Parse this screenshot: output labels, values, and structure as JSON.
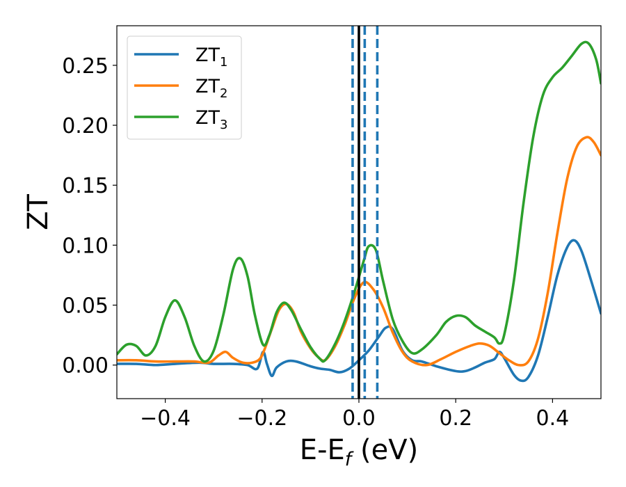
{
  "chart_data": {
    "type": "line",
    "xlabel": "E-E",
    "xlabel_sub": "f",
    "xlabel_unit": " (eV)",
    "ylabel": "ZT",
    "xlim": [
      -0.5,
      0.5
    ],
    "ylim": [
      -0.028,
      0.283
    ],
    "xticks": [
      -0.4,
      -0.2,
      0.0,
      0.2,
      0.4
    ],
    "xtick_labels": [
      "−0.4",
      "−0.2",
      "0.0",
      "0.2",
      "0.4"
    ],
    "yticks": [
      0.0,
      0.05,
      0.1,
      0.15,
      0.2,
      0.25
    ],
    "ytick_labels": [
      "0.00",
      "0.05",
      "0.10",
      "0.15",
      "0.20",
      "0.25"
    ],
    "legend_position": "top-left",
    "vertical_lines": [
      {
        "x": -0.013,
        "style": "dashed",
        "color": "#1f77b4"
      },
      {
        "x": 0.0,
        "style": "solid",
        "color": "#000000"
      },
      {
        "x": 0.012,
        "style": "dashed",
        "color": "#1f77b4"
      },
      {
        "x": 0.038,
        "style": "dashed",
        "color": "#1f77b4"
      }
    ],
    "series": [
      {
        "name": "ZT",
        "sub": "1",
        "color": "#1f77b4",
        "points": [
          [
            -0.5,
            0.001
          ],
          [
            -0.46,
            0.001
          ],
          [
            -0.42,
            0.0
          ],
          [
            -0.38,
            0.001
          ],
          [
            -0.33,
            0.002
          ],
          [
            -0.3,
            0.001
          ],
          [
            -0.26,
            0.001
          ],
          [
            -0.23,
            0.0
          ],
          [
            -0.21,
            -0.003
          ],
          [
            -0.198,
            0.011
          ],
          [
            -0.19,
            0.001
          ],
          [
            -0.18,
            -0.009
          ],
          [
            -0.17,
            -0.002
          ],
          [
            -0.15,
            0.003
          ],
          [
            -0.13,
            0.003
          ],
          [
            -0.1,
            -0.001
          ],
          [
            -0.08,
            -0.003
          ],
          [
            -0.06,
            -0.004
          ],
          [
            -0.04,
            -0.006
          ],
          [
            -0.02,
            -0.003
          ],
          [
            0.0,
            0.004
          ],
          [
            0.02,
            0.012
          ],
          [
            0.04,
            0.023
          ],
          [
            0.055,
            0.031
          ],
          [
            0.07,
            0.03
          ],
          [
            0.09,
            0.012
          ],
          [
            0.11,
            0.004
          ],
          [
            0.13,
            0.003
          ],
          [
            0.16,
            -0.001
          ],
          [
            0.2,
            -0.005
          ],
          [
            0.22,
            -0.005
          ],
          [
            0.24,
            -0.002
          ],
          [
            0.26,
            0.002
          ],
          [
            0.28,
            0.005
          ],
          [
            0.29,
            0.011
          ],
          [
            0.3,
            0.006
          ],
          [
            0.32,
            -0.008
          ],
          [
            0.335,
            -0.013
          ],
          [
            0.35,
            -0.01
          ],
          [
            0.37,
            0.008
          ],
          [
            0.39,
            0.04
          ],
          [
            0.41,
            0.075
          ],
          [
            0.43,
            0.098
          ],
          [
            0.445,
            0.104
          ],
          [
            0.46,
            0.095
          ],
          [
            0.48,
            0.07
          ],
          [
            0.5,
            0.043
          ]
        ]
      },
      {
        "name": "ZT",
        "sub": "2",
        "color": "#ff7f0e",
        "points": [
          [
            -0.5,
            0.004
          ],
          [
            -0.46,
            0.004
          ],
          [
            -0.42,
            0.003
          ],
          [
            -0.38,
            0.003
          ],
          [
            -0.34,
            0.003
          ],
          [
            -0.31,
            0.002
          ],
          [
            -0.29,
            0.008
          ],
          [
            -0.275,
            0.011
          ],
          [
            -0.26,
            0.006
          ],
          [
            -0.24,
            0.002
          ],
          [
            -0.22,
            0.002
          ],
          [
            -0.205,
            0.005
          ],
          [
            -0.195,
            0.013
          ],
          [
            -0.18,
            0.03
          ],
          [
            -0.165,
            0.046
          ],
          [
            -0.15,
            0.051
          ],
          [
            -0.135,
            0.044
          ],
          [
            -0.12,
            0.028
          ],
          [
            -0.1,
            0.014
          ],
          [
            -0.085,
            0.007
          ],
          [
            -0.07,
            0.004
          ],
          [
            -0.05,
            0.015
          ],
          [
            -0.03,
            0.033
          ],
          [
            -0.01,
            0.055
          ],
          [
            0.01,
            0.069
          ],
          [
            0.03,
            0.063
          ],
          [
            0.05,
            0.048
          ],
          [
            0.07,
            0.027
          ],
          [
            0.09,
            0.011
          ],
          [
            0.11,
            0.003
          ],
          [
            0.14,
            0.0
          ],
          [
            0.17,
            0.005
          ],
          [
            0.2,
            0.011
          ],
          [
            0.23,
            0.016
          ],
          [
            0.25,
            0.018
          ],
          [
            0.27,
            0.016
          ],
          [
            0.29,
            0.01
          ],
          [
            0.31,
            0.004
          ],
          [
            0.33,
            0.0
          ],
          [
            0.35,
            0.003
          ],
          [
            0.37,
            0.022
          ],
          [
            0.39,
            0.06
          ],
          [
            0.41,
            0.11
          ],
          [
            0.43,
            0.155
          ],
          [
            0.45,
            0.182
          ],
          [
            0.47,
            0.19
          ],
          [
            0.485,
            0.186
          ],
          [
            0.5,
            0.175
          ]
        ]
      },
      {
        "name": "ZT",
        "sub": "3",
        "color": "#2ca02c",
        "points": [
          [
            -0.5,
            0.009
          ],
          [
            -0.48,
            0.017
          ],
          [
            -0.46,
            0.016
          ],
          [
            -0.44,
            0.008
          ],
          [
            -0.42,
            0.016
          ],
          [
            -0.4,
            0.04
          ],
          [
            -0.38,
            0.054
          ],
          [
            -0.36,
            0.04
          ],
          [
            -0.34,
            0.016
          ],
          [
            -0.32,
            0.003
          ],
          [
            -0.3,
            0.012
          ],
          [
            -0.28,
            0.042
          ],
          [
            -0.26,
            0.08
          ],
          [
            -0.245,
            0.089
          ],
          [
            -0.23,
            0.074
          ],
          [
            -0.215,
            0.042
          ],
          [
            -0.198,
            0.017
          ],
          [
            -0.185,
            0.025
          ],
          [
            -0.17,
            0.044
          ],
          [
            -0.155,
            0.052
          ],
          [
            -0.14,
            0.046
          ],
          [
            -0.12,
            0.03
          ],
          [
            -0.1,
            0.015
          ],
          [
            -0.08,
            0.005
          ],
          [
            -0.07,
            0.004
          ],
          [
            -0.05,
            0.017
          ],
          [
            -0.03,
            0.036
          ],
          [
            -0.01,
            0.06
          ],
          [
            0.01,
            0.087
          ],
          [
            0.02,
            0.099
          ],
          [
            0.035,
            0.096
          ],
          [
            0.05,
            0.07
          ],
          [
            0.07,
            0.038
          ],
          [
            0.09,
            0.02
          ],
          [
            0.11,
            0.01
          ],
          [
            0.13,
            0.013
          ],
          [
            0.16,
            0.025
          ],
          [
            0.18,
            0.036
          ],
          [
            0.2,
            0.041
          ],
          [
            0.22,
            0.04
          ],
          [
            0.24,
            0.033
          ],
          [
            0.26,
            0.028
          ],
          [
            0.28,
            0.023
          ],
          [
            0.29,
            0.018
          ],
          [
            0.3,
            0.025
          ],
          [
            0.32,
            0.07
          ],
          [
            0.34,
            0.135
          ],
          [
            0.36,
            0.19
          ],
          [
            0.38,
            0.225
          ],
          [
            0.4,
            0.24
          ],
          [
            0.42,
            0.248
          ],
          [
            0.44,
            0.258
          ],
          [
            0.46,
            0.268
          ],
          [
            0.475,
            0.268
          ],
          [
            0.49,
            0.255
          ],
          [
            0.5,
            0.235
          ]
        ]
      }
    ]
  }
}
